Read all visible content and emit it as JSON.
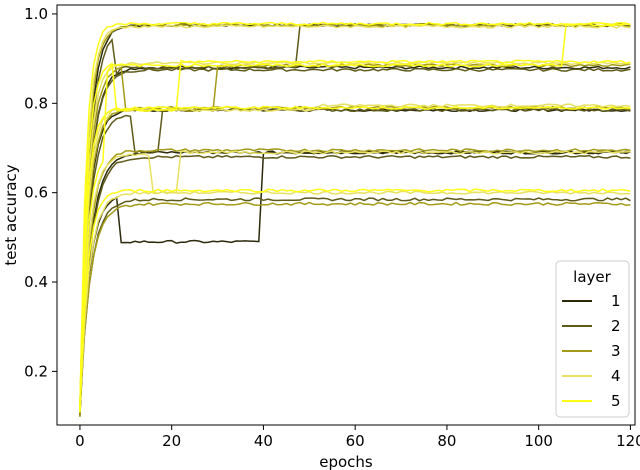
{
  "chart_data": {
    "type": "line",
    "title": "",
    "xlabel": "epochs",
    "ylabel": "test accuracy",
    "xlim": [
      -5,
      121
    ],
    "ylim": [
      0.08,
      1.02
    ],
    "xticks": [
      0,
      20,
      40,
      60,
      80,
      100,
      120
    ],
    "yticks": [
      0.2,
      0.4,
      0.6,
      0.8,
      1.0
    ],
    "xtick_labels": [
      "0",
      "20",
      "40",
      "60",
      "80",
      "100",
      "120"
    ],
    "ytick_labels": [
      "0.2",
      "0.4",
      "0.6",
      "0.8",
      "1.0"
    ],
    "grid": false,
    "legend": {
      "title": "layer",
      "placement": "lower-right",
      "entries": [
        "1",
        "2",
        "3",
        "4",
        "5"
      ]
    },
    "layer_colors": [
      "#2b2b0c",
      "#5e5a1a",
      "#a39b18",
      "#e8e060",
      "#ffff14"
    ],
    "plateaus": [
      0.975,
      0.88,
      0.785,
      0.69,
      0.595
    ],
    "epochs": 120,
    "series": [
      {
        "name": "1",
        "runs": [
          {
            "plateau": 0.975,
            "k": 0.55,
            "start": 0.11
          },
          {
            "plateau": 0.88,
            "k": 0.5,
            "start": 0.12
          },
          {
            "plateau": 0.785,
            "k": 0.55,
            "start": 0.1
          },
          {
            "plateau": 0.69,
            "k": 0.45,
            "start": 0.11
          },
          {
            "plateau": 0.595,
            "k": 0.5,
            "start": 0.12,
            "stall": [
              0.49,
              9,
              40
            ],
            "jump_to": 0.69
          }
        ]
      },
      {
        "name": "2",
        "runs": [
          {
            "plateau": 0.97,
            "k": 0.5,
            "start": 0.12,
            "stall": [
              0.88,
              8,
              48
            ],
            "jump_to": 0.975
          },
          {
            "plateau": 0.875,
            "k": 0.5,
            "start": 0.11
          },
          {
            "plateau": 0.775,
            "k": 0.5,
            "start": 0.12,
            "stall": [
              0.69,
              12,
              18
            ],
            "jump_to": 0.785
          },
          {
            "plateau": 0.68,
            "k": 0.45,
            "start": 0.1
          },
          {
            "plateau": 0.585,
            "k": 0.45,
            "start": 0.11
          }
        ]
      },
      {
        "name": "3",
        "runs": [
          {
            "plateau": 0.975,
            "k": 0.6,
            "start": 0.12
          },
          {
            "plateau": 0.885,
            "k": 0.55,
            "start": 0.11,
            "stall": [
              0.785,
              10,
              30
            ],
            "jump_to": 0.885
          },
          {
            "plateau": 0.79,
            "k": 0.55,
            "start": 0.12
          },
          {
            "plateau": 0.695,
            "k": 0.5,
            "start": 0.1
          },
          {
            "plateau": 0.575,
            "k": 0.45,
            "start": 0.12
          }
        ]
      },
      {
        "name": "4",
        "runs": [
          {
            "plateau": 0.972,
            "k": 0.65,
            "start": 0.12
          },
          {
            "plateau": 0.89,
            "k": 0.6,
            "start": 0.11
          },
          {
            "plateau": 0.795,
            "k": 0.6,
            "start": 0.12,
            "stall": [
              0.785,
              6,
              52
            ],
            "jump_to": 0.795
          },
          {
            "plateau": 0.685,
            "k": 0.55,
            "start": 0.11,
            "stall": [
              0.6,
              16,
              22
            ],
            "jump_to": 0.69
          },
          {
            "plateau": 0.6,
            "k": 0.5,
            "start": 0.12
          }
        ]
      },
      {
        "name": "5",
        "runs": [
          {
            "plateau": 0.978,
            "k": 0.75,
            "start": 0.12
          },
          {
            "plateau": 0.893,
            "k": 0.7,
            "start": 0.11,
            "stall": [
              0.785,
              8,
              22
            ],
            "jump_to": 0.893
          },
          {
            "plateau": 0.79,
            "k": 0.7,
            "start": 0.12
          },
          {
            "plateau": 0.695,
            "k": 0.65,
            "start": 0.11,
            "stall": [
              0.885,
              6,
              106
            ],
            "jump_to": 0.975
          },
          {
            "plateau": 0.605,
            "k": 0.6,
            "start": 0.12
          }
        ]
      }
    ]
  }
}
